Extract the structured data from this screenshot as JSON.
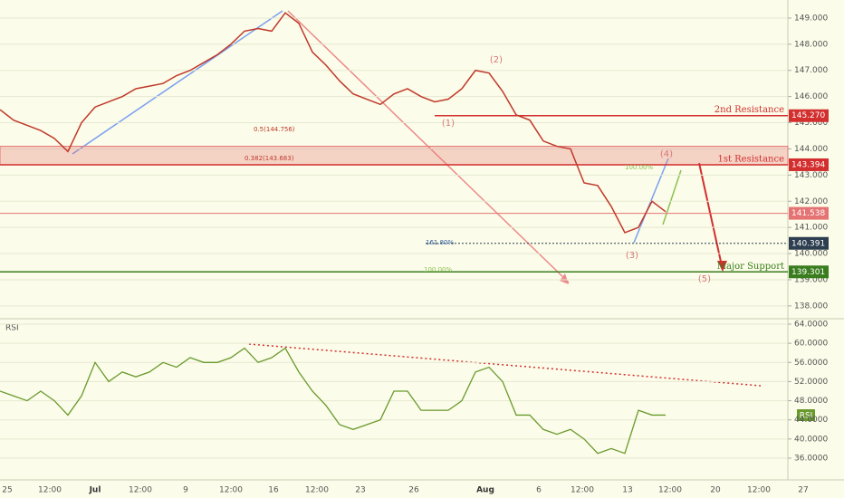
{
  "chart_data": {
    "type": "line",
    "price": {
      "values": [
        145.5,
        145.1,
        144.9,
        144.7,
        144.4,
        143.9,
        145.0,
        145.6,
        145.8,
        146.0,
        146.3,
        146.4,
        146.5,
        146.8,
        147.0,
        147.3,
        147.6,
        148.0,
        148.5,
        148.6,
        148.5,
        149.2,
        148.8,
        147.7,
        147.2,
        146.6,
        146.1,
        145.9,
        145.7,
        146.1,
        146.3,
        146.0,
        145.8,
        145.9,
        146.3,
        147.0,
        146.9,
        146.2,
        145.3,
        145.1,
        144.3,
        144.1,
        144.0,
        142.7,
        142.6,
        141.8,
        140.8,
        141.0,
        142.0,
        141.6
      ],
      "color": "#c0392b",
      "ylim": [
        137.58,
        149.69
      ],
      "yticks": [
        {
          "value": 138,
          "label": "138.000"
        },
        {
          "value": 139,
          "label": "139.000"
        },
        {
          "value": 140,
          "label": "140.000"
        },
        {
          "value": 141,
          "label": "141.000"
        },
        {
          "value": 142,
          "label": "142.000"
        },
        {
          "value": 143,
          "label": "143.000"
        },
        {
          "value": 144,
          "label": "144.000"
        },
        {
          "value": 145,
          "label": "145.000"
        },
        {
          "value": 146,
          "label": "146.000"
        },
        {
          "value": 147,
          "label": "147.000"
        },
        {
          "value": 148,
          "label": "148.000"
        },
        {
          "value": 149,
          "label": "149.000"
        }
      ],
      "levels": [
        {
          "name": "2nd Resistance",
          "value": 145.27,
          "value_label": "145.270",
          "color": "#d32f2f"
        },
        {
          "name": "1st Resistance",
          "value": 143.394,
          "value_label": "143.394",
          "color": "#d32f2f"
        },
        {
          "name": "Major Support",
          "value": 139.301,
          "value_label": "139.301",
          "color": "#3a7d1e"
        }
      ],
      "last": {
        "value": 141.538,
        "value_label": "141.538",
        "color": "#e57373"
      },
      "target": {
        "value": 140.391,
        "value_label": "140.391",
        "color": "#2c3e50"
      },
      "zone": [
        143.394,
        144.1
      ],
      "annotations": [
        "0.5(144.756)",
        "0.382(143.683)",
        "161.80%",
        "100.00%",
        "100.00%",
        "(1)",
        "(2)",
        "(3)",
        "(4)",
        "(5)"
      ]
    },
    "rsi": {
      "title": "RSI",
      "badge": "RSI",
      "values": [
        50,
        49,
        48,
        50,
        48,
        45,
        49,
        56,
        52,
        54,
        53,
        54,
        56,
        55,
        57,
        56,
        56,
        57,
        59,
        56,
        57,
        59,
        54,
        50,
        47,
        43,
        42,
        43,
        44,
        50,
        50,
        46,
        46,
        46,
        48,
        54,
        55,
        52,
        45,
        45,
        42,
        41,
        42,
        40,
        37,
        38,
        37,
        46,
        45,
        45
      ],
      "color": "#6a9a2e",
      "ylim": [
        32.4,
        64.57
      ],
      "yticks": [
        {
          "value": 36,
          "label": "36.0000"
        },
        {
          "value": 40,
          "label": "40.0000"
        },
        {
          "value": 44,
          "label": "44.0000"
        },
        {
          "value": 48,
          "label": "48.0000"
        },
        {
          "value": 52,
          "label": "52.0000"
        },
        {
          "value": 56,
          "label": "56.0000"
        },
        {
          "value": 60,
          "label": "60.0000"
        },
        {
          "value": 64,
          "label": "64.0000"
        }
      ]
    },
    "x_labels": [
      "25",
      "12:00",
      "Jul",
      "12:00",
      "9",
      "12:00",
      "16",
      "12:00",
      "23",
      "26",
      "Aug",
      "6",
      "12:00",
      "13",
      "12:00",
      "20",
      "12:00",
      "27"
    ],
    "grid": true
  }
}
